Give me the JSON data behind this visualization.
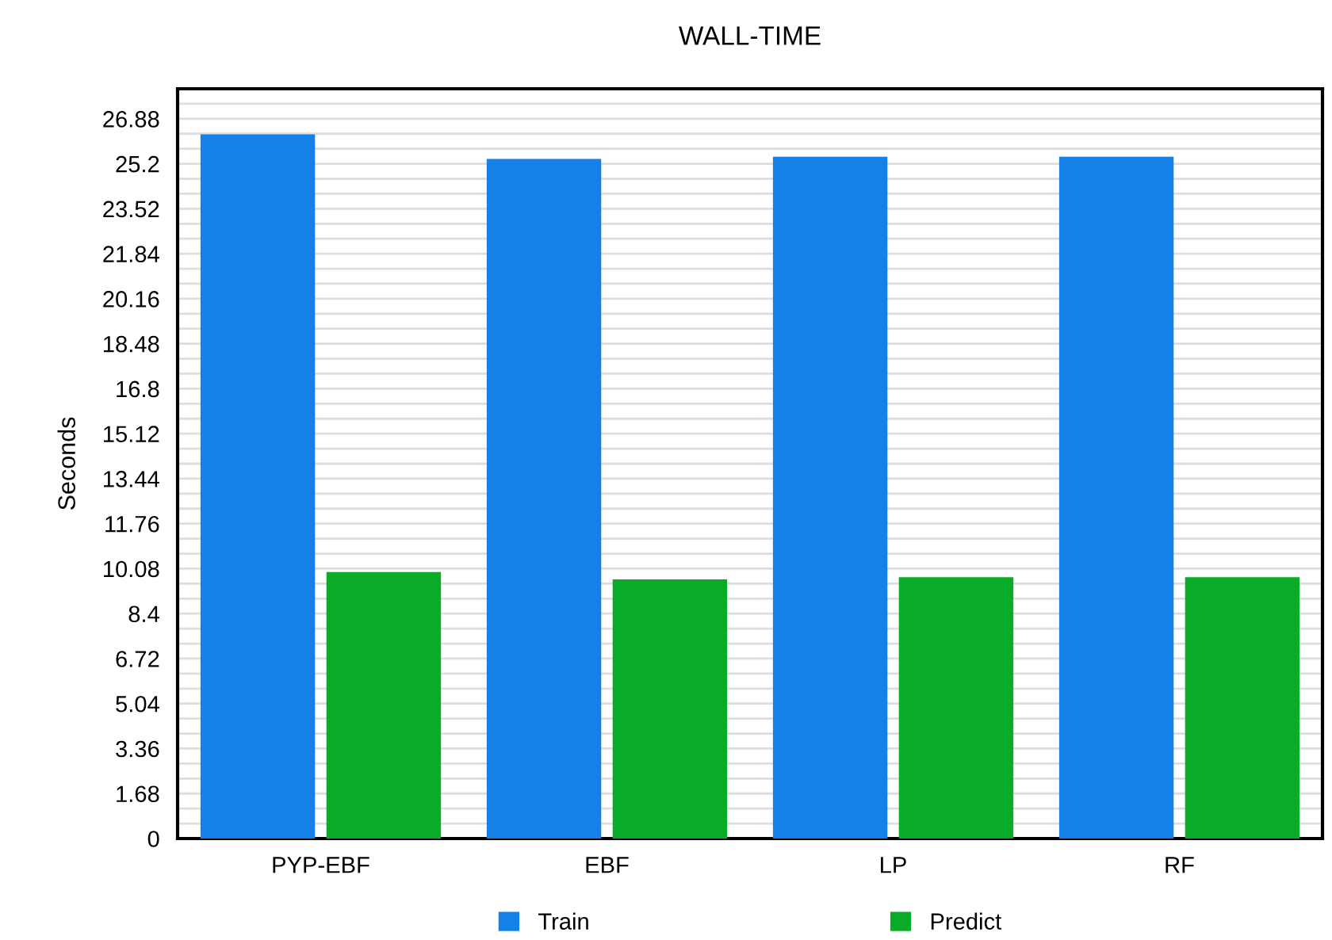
{
  "chart_data": {
    "type": "bar",
    "title": "WALL-TIME",
    "ylabel": "Seconds",
    "categories": [
      "PYP-EBF",
      "EBF",
      "LP",
      "RF"
    ],
    "series": [
      {
        "name": "Train",
        "color": "#1580e8",
        "values": [
          26.3,
          25.38,
          25.46,
          25.46
        ]
      },
      {
        "name": "Predict",
        "color": "#0aab26",
        "values": [
          9.95,
          9.68,
          9.76,
          9.76
        ]
      }
    ],
    "ylim": [
      0,
      28
    ],
    "yticks": [
      0,
      {
        "value": 0.56,
        "label": null
      },
      {
        "value": 1.12,
        "label": null
      },
      1.68,
      {
        "value": 2.24,
        "label": null
      },
      {
        "value": 2.8,
        "label": null
      },
      3.36,
      {
        "value": 3.92,
        "label": null
      },
      {
        "value": 4.48,
        "label": null
      },
      5.04,
      {
        "value": 5.6,
        "label": null
      },
      {
        "value": 6.16,
        "label": null
      },
      6.72,
      {
        "value": 7.28,
        "label": null
      },
      {
        "value": 7.84,
        "label": null
      },
      8.4,
      {
        "value": 8.96,
        "label": null
      },
      {
        "value": 9.52,
        "label": null
      },
      10.08,
      {
        "value": 10.64,
        "label": null
      },
      {
        "value": 11.2,
        "label": null
      },
      11.76,
      {
        "value": 12.32,
        "label": null
      },
      {
        "value": 12.88,
        "label": null
      },
      13.44,
      {
        "value": 14.0,
        "label": null
      },
      {
        "value": 14.56,
        "label": null
      },
      15.12,
      {
        "value": 15.68,
        "label": null
      },
      {
        "value": 16.24,
        "label": null
      },
      16.8,
      {
        "value": 17.36,
        "label": null
      },
      {
        "value": 17.92,
        "label": null
      },
      18.48,
      {
        "value": 19.04,
        "label": null
      },
      {
        "value": 19.6,
        "label": null
      },
      20.16,
      {
        "value": 20.72,
        "label": null
      },
      {
        "value": 21.28,
        "label": null
      },
      21.84,
      {
        "value": 22.4,
        "label": null
      },
      {
        "value": 22.96,
        "label": null
      },
      23.52,
      {
        "value": 24.08,
        "label": null
      },
      {
        "value": 24.64,
        "label": null
      },
      25.2,
      {
        "value": 25.76,
        "label": null
      },
      {
        "value": 26.32,
        "label": null
      },
      26.88,
      {
        "value": 27.44,
        "label": null
      }
    ],
    "grid": "y",
    "legend": "bottom"
  }
}
